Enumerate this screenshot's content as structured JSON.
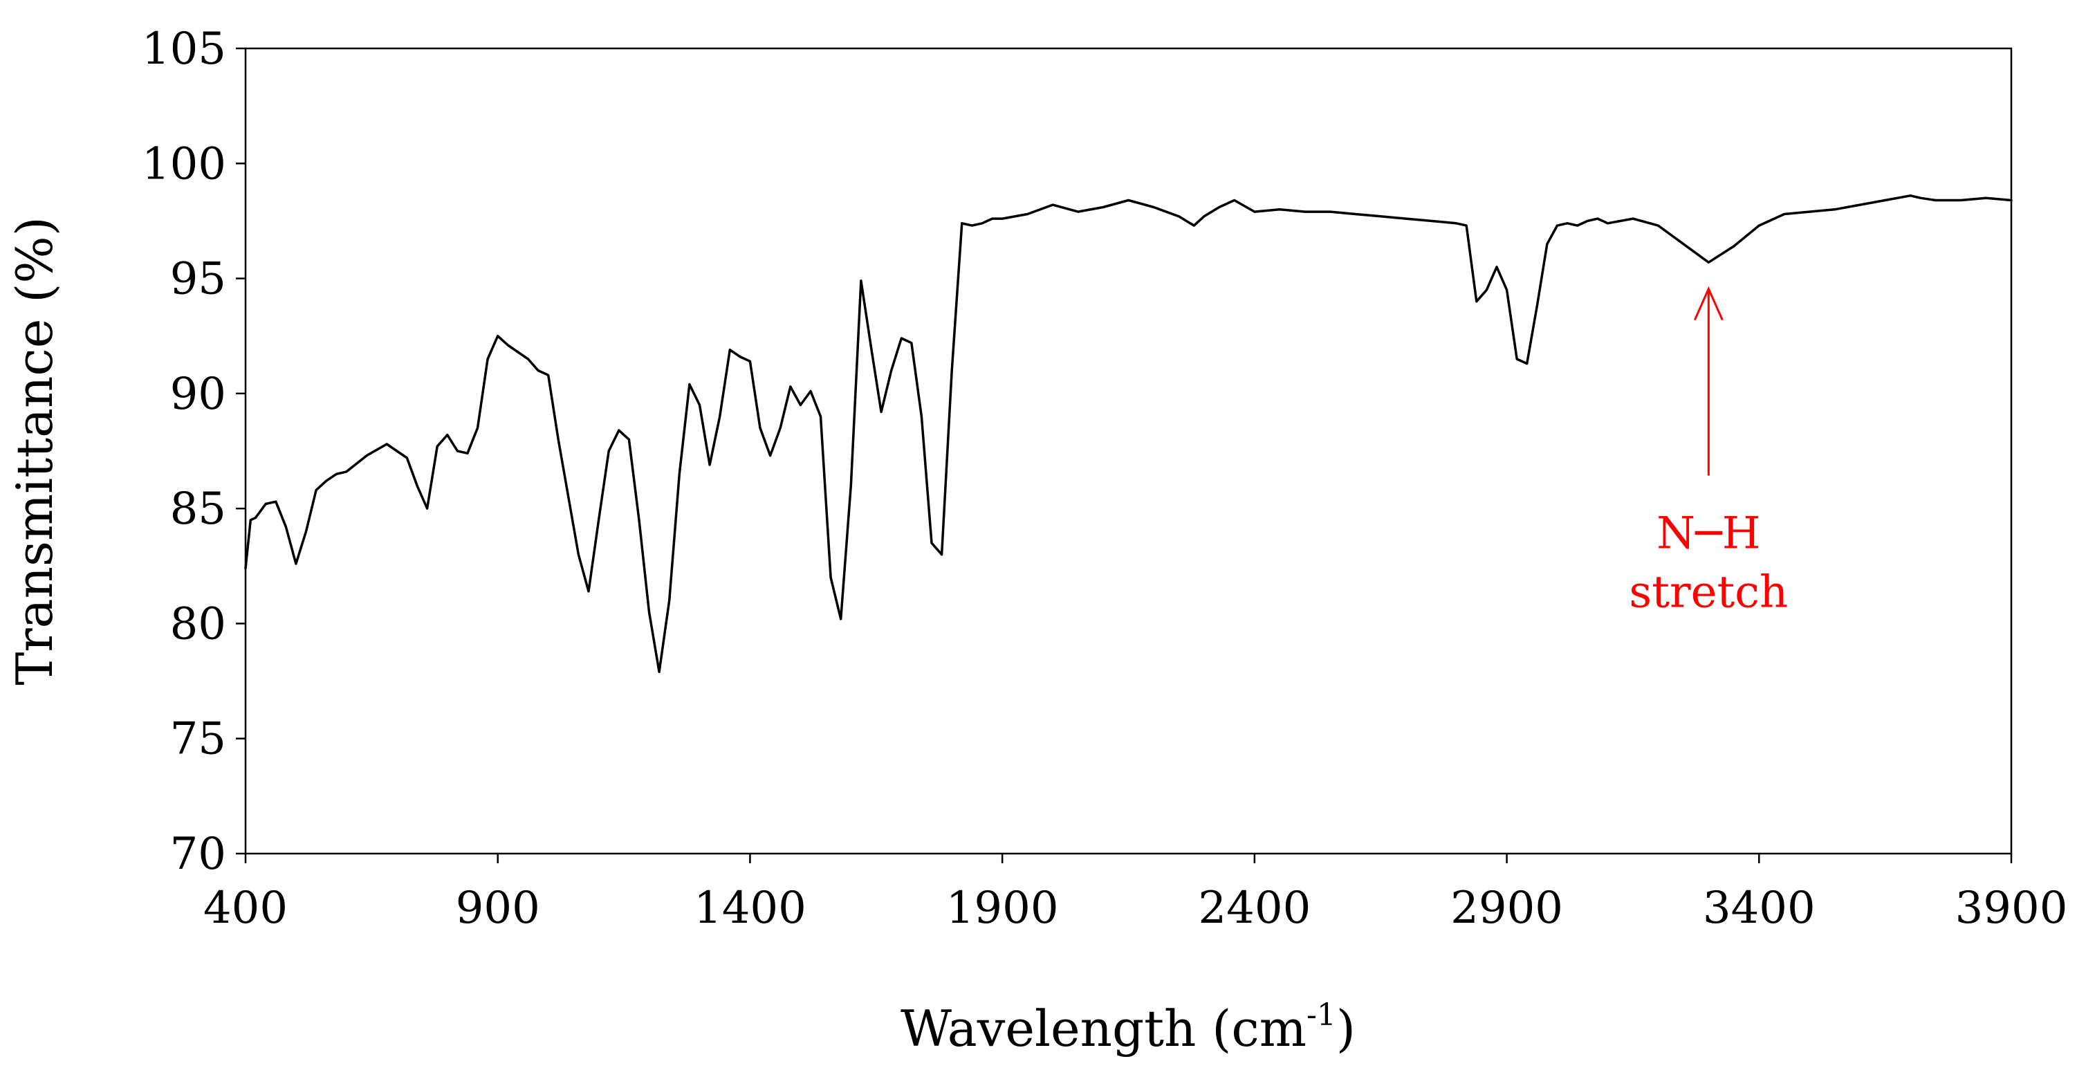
{
  "chart_data": {
    "type": "line",
    "title": "",
    "xlabel": "Wavelength (cm",
    "xlabel_sup": "-1",
    "xlabel_close": ")",
    "ylabel": "Transmittance (%)",
    "xlim": [
      400,
      3900
    ],
    "ylim": [
      70,
      105
    ],
    "xticks": [
      "400",
      "900",
      "1400",
      "1900",
      "2400",
      "2900",
      "3400",
      "3900"
    ],
    "yticks": [
      "70",
      "75",
      "80",
      "85",
      "90",
      "95",
      "100",
      "105"
    ],
    "grid": false,
    "line_color": "#000000",
    "annotation_color": "#ff0000",
    "series": [
      {
        "x": [
          400,
          410,
          420,
          440,
          460,
          480,
          500,
          520,
          540,
          560,
          580,
          600,
          640,
          680,
          700,
          720,
          740,
          760,
          780,
          800,
          820,
          840,
          860,
          880,
          900,
          920,
          940,
          960,
          980,
          1000,
          1020,
          1040,
          1060,
          1080,
          1100,
          1120,
          1140,
          1160,
          1180,
          1200,
          1220,
          1240,
          1260,
          1280,
          1300,
          1320,
          1340,
          1360,
          1380,
          1400,
          1420,
          1440,
          1460,
          1480,
          1500,
          1520,
          1540,
          1560,
          1580,
          1600,
          1620,
          1640,
          1660,
          1680,
          1700,
          1720,
          1740,
          1760,
          1780,
          1800,
          1820,
          1840,
          1860,
          1880,
          1900,
          1950,
          2000,
          2050,
          2100,
          2150,
          2200,
          2250,
          2280,
          2300,
          2330,
          2360,
          2400,
          2450,
          2500,
          2550,
          2600,
          2650,
          2700,
          2750,
          2800,
          2820,
          2840,
          2860,
          2880,
          2900,
          2920,
          2940,
          2960,
          2980,
          3000,
          3020,
          3040,
          3060,
          3080,
          3100,
          3150,
          3200,
          3250,
          3300,
          3350,
          3400,
          3450,
          3500,
          3550,
          3600,
          3650,
          3700,
          3720,
          3750,
          3800,
          3850,
          3900
        ],
        "values": [
          82.4,
          84.5,
          84.6,
          85.2,
          85.3,
          84.2,
          82.6,
          84.0,
          85.8,
          86.2,
          86.5,
          86.6,
          87.3,
          87.8,
          87.5,
          87.2,
          86.0,
          85.0,
          87.7,
          88.2,
          87.5,
          87.4,
          88.5,
          91.5,
          92.5,
          92.1,
          91.8,
          91.5,
          91.0,
          90.8,
          88.0,
          85.5,
          83.0,
          81.4,
          84.5,
          87.5,
          88.4,
          88.0,
          84.5,
          80.5,
          77.9,
          81.0,
          86.5,
          90.4,
          89.5,
          86.9,
          89.0,
          91.9,
          91.6,
          91.4,
          88.5,
          87.3,
          88.5,
          90.3,
          89.5,
          90.1,
          89.0,
          82.0,
          80.2,
          86.0,
          94.9,
          92.0,
          89.2,
          91.0,
          92.4,
          92.2,
          89.0,
          83.5,
          83.0,
          91.0,
          97.4,
          97.3,
          97.4,
          97.6,
          97.6,
          97.8,
          98.2,
          97.9,
          98.1,
          98.4,
          98.1,
          97.7,
          97.3,
          97.7,
          98.1,
          98.4,
          97.9,
          98.0,
          97.9,
          97.9,
          97.8,
          97.7,
          97.6,
          97.5,
          97.4,
          97.3,
          94.0,
          94.5,
          95.5,
          94.5,
          91.5,
          91.3,
          93.8,
          96.5,
          97.3,
          97.4,
          97.3,
          97.5,
          97.6,
          97.4,
          97.6,
          97.3,
          96.5,
          95.7,
          96.4,
          97.3,
          97.8,
          97.9,
          98.0,
          98.2,
          98.4,
          98.6,
          98.5,
          98.4,
          98.4,
          98.5,
          98.4
        ]
      }
    ],
    "annotations": [
      {
        "line1": "N─H",
        "line2": "stretch",
        "x": 3300,
        "y": 95.6
      }
    ]
  }
}
